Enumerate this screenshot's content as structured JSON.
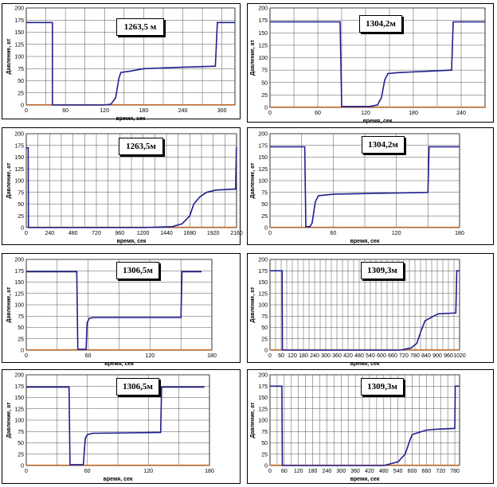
{
  "colors": {
    "curve": "#1f1f8f",
    "baseline": "#d2691e",
    "grid": "#555555"
  },
  "common": {
    "xlabel": "время, сек",
    "ylabel": "Давление, ат"
  },
  "chart_data": [
    {
      "type": "line",
      "title": "1263,5 м",
      "xlabel": "время, сек",
      "ylabel": "Давление, ат",
      "xlim": [
        0,
        320
      ],
      "ylim": [
        0,
        200
      ],
      "xticks": [
        0,
        60,
        120,
        180,
        240,
        300
      ],
      "yticks": [
        0,
        25,
        50,
        75,
        100,
        125,
        150,
        175,
        200
      ],
      "series": [
        {
          "x": [
            0,
            40,
            40,
            120,
            130,
            137,
            142,
            145,
            160,
            180,
            240,
            290,
            293,
            320
          ],
          "y": [
            170,
            170,
            0,
            0,
            2,
            15,
            55,
            67,
            70,
            75,
            78,
            80,
            170,
            170
          ]
        }
      ]
    },
    {
      "type": "line",
      "title": "1304,2м",
      "xlabel": "время, сек",
      "ylabel": "Давление, ат",
      "xlim": [
        0,
        270
      ],
      "ylim": [
        0,
        200
      ],
      "xticks": [
        0,
        60,
        120,
        180,
        240
      ],
      "yticks": [
        0,
        25,
        50,
        75,
        100,
        125,
        150,
        175,
        200
      ],
      "series": [
        {
          "x": [
            0,
            88,
            90,
            125,
            135,
            140,
            144,
            148,
            160,
            200,
            228,
            230,
            270
          ],
          "y": [
            172,
            172,
            2,
            2,
            5,
            20,
            55,
            68,
            70,
            73,
            75,
            172,
            172
          ]
        }
      ]
    },
    {
      "type": "line",
      "title": "1263,5м",
      "xlabel": "время, сек",
      "ylabel": "Давление, ат",
      "xlim": [
        0,
        2160
      ],
      "ylim": [
        0,
        200
      ],
      "xticks": [
        0,
        240,
        480,
        720,
        960,
        1200,
        1440,
        1680,
        1920,
        2160
      ],
      "yticks": [
        0,
        25,
        50,
        75,
        100,
        125,
        150,
        175,
        200
      ],
      "series": [
        {
          "x": [
            0,
            20,
            22,
            1200,
            1500,
            1600,
            1680,
            1720,
            1780,
            1850,
            1950,
            2150,
            2158,
            2160
          ],
          "y": [
            170,
            170,
            0,
            0,
            2,
            8,
            25,
            50,
            65,
            75,
            80,
            82,
            170,
            170
          ]
        }
      ]
    },
    {
      "type": "line",
      "title": "1304,2м",
      "xlabel": "время, сек",
      "ylabel": "Давление, ат",
      "xlim": [
        0,
        180
      ],
      "ylim": [
        0,
        200
      ],
      "xticks": [
        0,
        60,
        120,
        180
      ],
      "yticks": [
        0,
        25,
        50,
        75,
        100,
        125,
        150,
        175,
        200
      ],
      "series": [
        {
          "x": [
            0,
            33,
            34,
            38,
            40,
            43,
            46,
            60,
            100,
            150,
            151,
            180
          ],
          "y": [
            172,
            172,
            2,
            2,
            10,
            55,
            68,
            71,
            73,
            75,
            172,
            172
          ]
        }
      ]
    },
    {
      "type": "line",
      "title": "1306,5м",
      "xlabel": "время, сек",
      "ylabel": "Давление, ат",
      "xlim": [
        0,
        180
      ],
      "ylim": [
        0,
        200
      ],
      "xticks": [
        0,
        60,
        120,
        180
      ],
      "yticks": [
        0,
        25,
        50,
        75,
        100,
        125,
        150,
        175,
        200
      ],
      "series": [
        {
          "x": [
            0,
            49,
            50,
            58,
            59,
            61,
            65,
            100,
            150,
            151,
            170
          ],
          "y": [
            173,
            173,
            2,
            2,
            60,
            70,
            72,
            72,
            72,
            173,
            173
          ]
        }
      ]
    },
    {
      "type": "line",
      "title": "1309,3м",
      "xlabel": "время, сек",
      "ylabel": "Давление, ат",
      "xlim": [
        0,
        1020
      ],
      "ylim": [
        0,
        200
      ],
      "xticks": [
        0,
        60,
        120,
        180,
        240,
        300,
        360,
        420,
        480,
        540,
        600,
        660,
        720,
        780,
        840,
        900,
        960,
        1020
      ],
      "yticks": [
        0,
        25,
        50,
        75,
        100,
        125,
        150,
        175,
        200
      ],
      "series": [
        {
          "x": [
            0,
            65,
            67,
            700,
            760,
            790,
            815,
            835,
            850,
            880,
            905,
            1000,
            1005,
            1020
          ],
          "y": [
            175,
            175,
            0,
            0,
            5,
            15,
            45,
            65,
            68,
            75,
            80,
            82,
            175,
            175
          ]
        }
      ]
    },
    {
      "type": "line",
      "title": "1306,5м",
      "xlabel": "время, сек",
      "ylabel": "Давление, ат",
      "xlim": [
        0,
        180
      ],
      "ylim": [
        0,
        200
      ],
      "xticks": [
        0,
        60,
        120,
        180
      ],
      "yticks": [
        0,
        25,
        50,
        75,
        100,
        125,
        150,
        175,
        200
      ],
      "series": [
        {
          "x": [
            0,
            42,
            43,
            56,
            58,
            60,
            65,
            100,
            132,
            133,
            175
          ],
          "y": [
            173,
            173,
            2,
            2,
            60,
            68,
            71,
            72,
            73,
            173,
            173
          ]
        }
      ]
    },
    {
      "type": "line",
      "title": "1309,3м",
      "xlabel": "время, сек",
      "ylabel": "Давление, ат",
      "xlim": [
        0,
        800
      ],
      "ylim": [
        0,
        200
      ],
      "xticks": [
        0,
        60,
        120,
        180,
        240,
        300,
        360,
        420,
        480,
        540,
        600,
        660,
        720,
        780
      ],
      "yticks": [
        0,
        25,
        50,
        75,
        100,
        125,
        150,
        175,
        200
      ],
      "series": [
        {
          "x": [
            0,
            50,
            52,
            480,
            540,
            570,
            590,
            600,
            610,
            660,
            700,
            780,
            782,
            800
          ],
          "y": [
            175,
            175,
            0,
            0,
            8,
            25,
            55,
            68,
            70,
            78,
            80,
            82,
            175,
            175
          ]
        }
      ]
    }
  ]
}
